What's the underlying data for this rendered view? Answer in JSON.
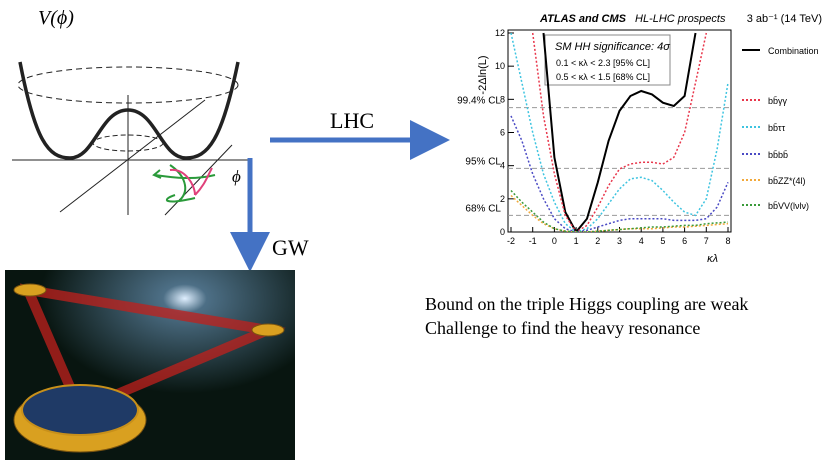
{
  "potential": {
    "y_label": "V(ϕ)",
    "x_label": "ϕ"
  },
  "arrows": {
    "lhc": "LHC",
    "gw": "GW"
  },
  "notes": [
    "Bound on the triple Higgs coupling are weak",
    "Challenge to find the heavy resonance"
  ],
  "chart_data": {
    "type": "line",
    "title": "ATLAS and CMS",
    "subtitle": "HL-LHC prospects",
    "luminosity": "3 ab⁻¹ (14 TeV)",
    "annotations": [
      "SM HH significance: 4σ",
      "0.1 < κλ < 2.3 [95% CL]",
      "0.5 < κλ < 1.5 [68% CL]"
    ],
    "x_label": "κλ",
    "y_label": "-2Δln(L)",
    "xlim": [
      -2,
      8
    ],
    "ylim": [
      0,
      12
    ],
    "xticks": [
      -2,
      -1,
      0,
      1,
      2,
      3,
      4,
      5,
      6,
      7,
      8
    ],
    "yticks": [
      0,
      2,
      4,
      6,
      8,
      10,
      12
    ],
    "thresholds": [
      {
        "value": 7.5,
        "label": "99.4% CL"
      },
      {
        "value": 3.84,
        "label": "95% CL"
      },
      {
        "value": 1,
        "label": "68% CL"
      }
    ],
    "x": [
      -2,
      -1.5,
      -1,
      -0.5,
      0,
      0.5,
      1,
      1.5,
      2,
      2.5,
      3,
      3.5,
      4,
      4.5,
      5,
      5.5,
      6,
      6.5,
      7,
      7.5,
      8
    ],
    "series": [
      {
        "name": "Combination",
        "color": "#000000",
        "line_style": "solid",
        "values": [
          null,
          null,
          null,
          12,
          4.5,
          1.2,
          0,
          0.8,
          3,
          5.5,
          7.3,
          8.2,
          8.5,
          8.3,
          7.8,
          7.6,
          8.2,
          12,
          null,
          null,
          null
        ]
      },
      {
        "name": "bb̄γγ",
        "color": "#e8364b",
        "line_style": "dotted",
        "values": [
          null,
          null,
          12,
          7,
          3.5,
          1,
          0,
          0.4,
          1.5,
          2.8,
          3.8,
          4.1,
          4.2,
          4.2,
          4.1,
          4.5,
          6,
          9,
          12,
          null,
          null
        ]
      },
      {
        "name": "bb̄ττ",
        "color": "#3ec4e0",
        "line_style": "dotted",
        "values": [
          12,
          9,
          6,
          3.5,
          1.8,
          0.5,
          0,
          0.2,
          0.8,
          1.7,
          2.6,
          3.2,
          3.3,
          3.1,
          2.5,
          1.8,
          1.2,
          1,
          2,
          5,
          9
        ]
      },
      {
        "name": "bb̄bb̄",
        "color": "#4a4ac4",
        "line_style": "dotted",
        "values": [
          7,
          5.5,
          3.5,
          2,
          0.8,
          0.2,
          0,
          0.1,
          0.3,
          0.5,
          0.7,
          0.8,
          0.8,
          0.8,
          0.8,
          0.7,
          0.7,
          0.7,
          0.8,
          1.5,
          3
        ]
      },
      {
        "name": "bb̄ZZ*(4l)",
        "color": "#f2a93b",
        "line_style": "dotted",
        "values": [
          2.2,
          1.6,
          1,
          0.5,
          0.2,
          0.05,
          0,
          0,
          0.05,
          0.1,
          0.15,
          0.2,
          0.2,
          0.2,
          0.25,
          0.3,
          0.3,
          0.35,
          0.4,
          0.45,
          0.5
        ]
      },
      {
        "name": "bb̄VV(lνlν)",
        "color": "#3a9a3a",
        "line_style": "dotted",
        "values": [
          2.5,
          1.8,
          1.2,
          0.6,
          0.2,
          0.05,
          0,
          0,
          0.05,
          0.1,
          0.15,
          0.2,
          0.25,
          0.3,
          0.3,
          0.35,
          0.4,
          0.4,
          0.5,
          0.55,
          0.6
        ]
      }
    ]
  }
}
